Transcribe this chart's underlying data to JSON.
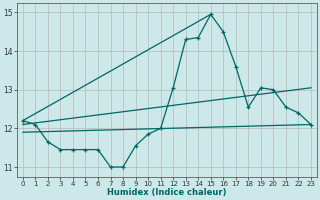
{
  "xlabel": "Humidex (Indice chaleur)",
  "bg_color": "#cce8e8",
  "grid_color": "#b8b8b8",
  "line_color": "#006666",
  "x_data": [
    0,
    1,
    2,
    3,
    4,
    5,
    6,
    7,
    8,
    9,
    10,
    11,
    12,
    13,
    14,
    15,
    16,
    17,
    18,
    19,
    20,
    21,
    22,
    23
  ],
  "series1": [
    12.2,
    12.1,
    11.65,
    11.45,
    11.45,
    11.45,
    11.45,
    11.0,
    11.0,
    11.55,
    11.85,
    12.0,
    13.05,
    14.3,
    14.35,
    14.95,
    14.5,
    13.6,
    12.55,
    13.05,
    13.0,
    12.55,
    12.4,
    12.1
  ],
  "line2_x": [
    0,
    15
  ],
  "line2_y": [
    12.2,
    14.95
  ],
  "line3_x": [
    0,
    23
  ],
  "line3_y": [
    12.1,
    13.05
  ],
  "line4_x": [
    0,
    23
  ],
  "line4_y": [
    11.9,
    12.1
  ],
  "xlim": [
    -0.5,
    23.5
  ],
  "ylim": [
    10.75,
    15.25
  ],
  "yticks": [
    11,
    12,
    13,
    14,
    15
  ],
  "xticks": [
    0,
    1,
    2,
    3,
    4,
    5,
    6,
    7,
    8,
    9,
    10,
    11,
    12,
    13,
    14,
    15,
    16,
    17,
    18,
    19,
    20,
    21,
    22,
    23
  ]
}
